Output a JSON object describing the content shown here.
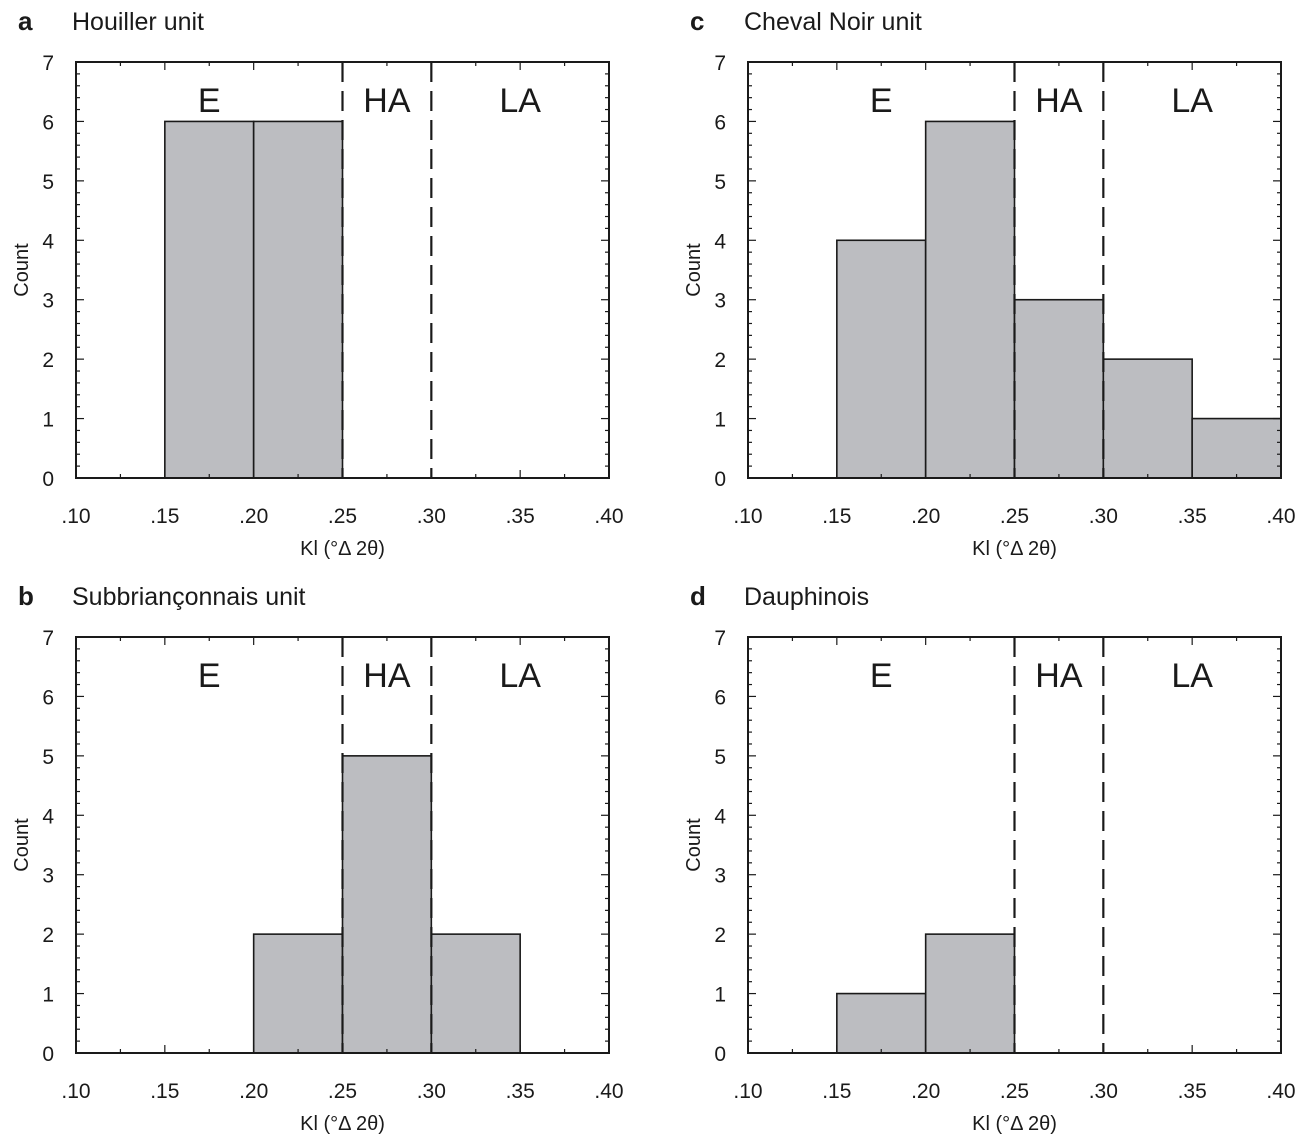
{
  "figure": {
    "colors": {
      "bar_fill": "#bcbdc1",
      "line": "#1a1a1a",
      "background": "#ffffff"
    }
  },
  "chart_data": [
    {
      "panel": "a",
      "title": "Houiller unit",
      "type": "bar",
      "bin_edges": [
        0.1,
        0.15,
        0.2,
        0.25,
        0.3,
        0.35,
        0.4
      ],
      "values": [
        0,
        6,
        6,
        0,
        0,
        0
      ],
      "x_tick_labels": [
        ".10",
        ".15",
        ".20",
        ".25",
        ".30",
        ".35",
        ".40"
      ],
      "y_tick_labels": [
        "0",
        "1",
        "2",
        "3",
        "4",
        "5",
        "6",
        "7"
      ],
      "xlabel": "Kl (°Δ 2θ)",
      "ylabel": "Count",
      "xlim": [
        0.1,
        0.4
      ],
      "ylim": [
        0,
        7
      ],
      "zone_boundaries": [
        0.25,
        0.3
      ],
      "zones": [
        {
          "label": "E",
          "x": 0.175
        },
        {
          "label": "HA",
          "x": 0.275
        },
        {
          "label": "LA",
          "x": 0.35
        }
      ]
    },
    {
      "panel": "b",
      "title": "Subbriançonnais unit",
      "type": "bar",
      "bin_edges": [
        0.1,
        0.15,
        0.2,
        0.25,
        0.3,
        0.35,
        0.4
      ],
      "values": [
        0,
        0,
        2,
        5,
        2,
        0
      ],
      "x_tick_labels": [
        ".10",
        ".15",
        ".20",
        ".25",
        ".30",
        ".35",
        ".40"
      ],
      "y_tick_labels": [
        "0",
        "1",
        "2",
        "3",
        "4",
        "5",
        "6",
        "7"
      ],
      "xlabel": "Kl (°Δ 2θ)",
      "ylabel": "Count",
      "xlim": [
        0.1,
        0.4
      ],
      "ylim": [
        0,
        7
      ],
      "zone_boundaries": [
        0.25,
        0.3
      ],
      "zones": [
        {
          "label": "E",
          "x": 0.175
        },
        {
          "label": "HA",
          "x": 0.275
        },
        {
          "label": "LA",
          "x": 0.35
        }
      ]
    },
    {
      "panel": "c",
      "title": "Cheval Noir unit",
      "type": "bar",
      "bin_edges": [
        0.1,
        0.15,
        0.2,
        0.25,
        0.3,
        0.35,
        0.4
      ],
      "values": [
        0,
        4,
        6,
        3,
        2,
        1
      ],
      "x_tick_labels": [
        ".10",
        ".15",
        ".20",
        ".25",
        ".30",
        ".35",
        ".40"
      ],
      "y_tick_labels": [
        "0",
        "1",
        "2",
        "3",
        "4",
        "5",
        "6",
        "7"
      ],
      "xlabel": "Kl (°Δ 2θ)",
      "ylabel": "Count",
      "xlim": [
        0.1,
        0.4
      ],
      "ylim": [
        0,
        7
      ],
      "zone_boundaries": [
        0.25,
        0.3
      ],
      "zones": [
        {
          "label": "E",
          "x": 0.175
        },
        {
          "label": "HA",
          "x": 0.275
        },
        {
          "label": "LA",
          "x": 0.35
        }
      ]
    },
    {
      "panel": "d",
      "title": "Dauphinois",
      "type": "bar",
      "bin_edges": [
        0.1,
        0.15,
        0.2,
        0.25,
        0.3,
        0.35,
        0.4
      ],
      "values": [
        0,
        1,
        2,
        0,
        0,
        0
      ],
      "x_tick_labels": [
        ".10",
        ".15",
        ".20",
        ".25",
        ".30",
        ".35",
        ".40"
      ],
      "y_tick_labels": [
        "0",
        "1",
        "2",
        "3",
        "4",
        "5",
        "6",
        "7"
      ],
      "xlabel": "Kl (°Δ 2θ)",
      "ylabel": "Count",
      "xlim": [
        0.1,
        0.4
      ],
      "ylim": [
        0,
        7
      ],
      "zone_boundaries": [
        0.25,
        0.3
      ],
      "zones": [
        {
          "label": "E",
          "x": 0.175
        },
        {
          "label": "HA",
          "x": 0.275
        },
        {
          "label": "LA",
          "x": 0.35
        }
      ]
    }
  ]
}
